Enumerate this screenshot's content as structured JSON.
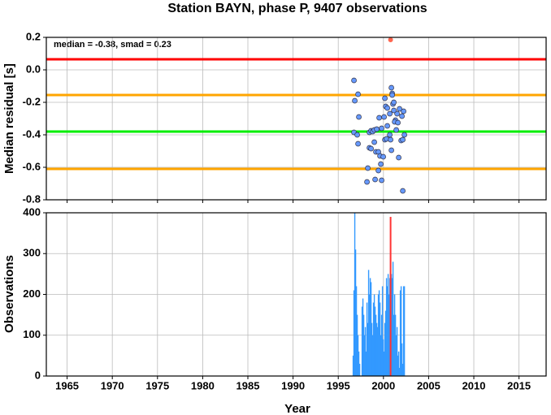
{
  "chart_data": [
    {
      "type": "scatter",
      "title": "Station BAYN, phase P, 9407 observations",
      "annotation": "median = -0.38, smad = 0.23",
      "ylabel": "Median residual [s]",
      "xlim": [
        1962.7,
        2018
      ],
      "xticks": [
        1965,
        1970,
        1975,
        1980,
        1985,
        1990,
        1995,
        2000,
        2005,
        2010,
        2015
      ],
      "ylim": [
        -0.8,
        0.2
      ],
      "yticks": [
        0.2,
        {
          "value": 0,
          "label": "0.0"
        },
        -0.2,
        -0.4,
        -0.6,
        -0.8
      ],
      "grid": true,
      "color": "#6699ff",
      "reference_lines": [
        {
          "value": 0.065,
          "color": "#ff0000"
        },
        {
          "value": -0.155,
          "color": "#ffa500"
        },
        {
          "value": -0.38,
          "color": "#00ee00"
        },
        {
          "value": -0.61,
          "color": "#ffa500"
        }
      ],
      "x": [
        1996.74,
        1996.83,
        1997.19,
        1997.28,
        1996.74,
        1997.1,
        1997.19,
        1998.45,
        1998.63,
        1998.81,
        1998.99,
        1999.26,
        1999.8,
        1999.53,
        2000.07,
        2000.25,
        2000.16,
        2000.43,
        2000.7,
        2000.88,
        2000.97,
        2001.06,
        2001.15,
        2001.33,
        2001.24,
        2001.6,
        2001.51,
        2001.78,
        2002.05,
        2002.23,
        2000.16,
        2000.34,
        2000.7,
        1998.45,
        1998.63,
        1998.99,
        1999.17,
        1999.44,
        1999.62,
        1999.98,
        1999.71,
        1998.27,
        1999.44,
        1998.18,
        1999.08,
        1999.8,
        2001.69,
        2001.96,
        2002.14,
        2002.32,
        2000.97,
        2001.15,
        2000.43,
        2001.42,
        2000.88,
        2000.79,
        2002.14
      ],
      "values": [
        -0.065,
        -0.19,
        -0.15,
        -0.29,
        -0.385,
        -0.4,
        -0.455,
        -0.385,
        -0.375,
        -0.38,
        -0.37,
        -0.365,
        -0.36,
        -0.295,
        -0.29,
        -0.225,
        -0.175,
        -0.235,
        -0.27,
        -0.11,
        -0.145,
        -0.21,
        -0.2,
        -0.31,
        -0.32,
        -0.325,
        -0.27,
        -0.24,
        -0.285,
        -0.255,
        -0.43,
        -0.425,
        -0.4,
        -0.48,
        -0.485,
        -0.445,
        -0.505,
        -0.505,
        -0.53,
        -0.535,
        -0.58,
        -0.605,
        -0.62,
        -0.69,
        -0.675,
        -0.68,
        -0.54,
        -0.435,
        -0.43,
        -0.4,
        -0.155,
        -0.25,
        -0.345,
        -0.37,
        -0.495,
        -0.43,
        -0.745
      ],
      "highlight_x": 2000.79,
      "highlight_value": 0.185,
      "highlight_color": "#ff6650"
    },
    {
      "type": "bar",
      "ylabel": "Observations",
      "xlabel": "Year",
      "xlim": [
        1962.7,
        2018
      ],
      "xticks": [
        1965,
        1970,
        1975,
        1980,
        1985,
        1990,
        1995,
        2000,
        2005,
        2010,
        2015
      ],
      "ylim": [
        0,
        400
      ],
      "yticks": [
        0,
        100,
        200,
        300,
        400
      ],
      "grid": true,
      "color": "#3399ff",
      "x": [
        1996.65,
        1996.74,
        1996.83,
        1996.92,
        1997.01,
        1997.1,
        1997.19,
        1997.28,
        1997.37,
        1997.46,
        1997.55,
        1997.64,
        1997.73,
        1997.82,
        1997.91,
        1998.0,
        1998.09,
        1998.18,
        1998.27,
        1998.36,
        1998.45,
        1998.54,
        1998.63,
        1998.72,
        1998.81,
        1998.9,
        1998.99,
        1999.08,
        1999.17,
        1999.26,
        1999.35,
        1999.44,
        1999.53,
        1999.62,
        1999.71,
        1999.8,
        1999.89,
        1999.98,
        2000.07,
        2000.16,
        2000.25,
        2000.34,
        2000.43,
        2000.52,
        2000.61,
        2000.7,
        2000.79,
        2000.88,
        2000.97,
        2001.06,
        2001.15,
        2001.24,
        2001.33,
        2001.42,
        2001.51,
        2001.6,
        2001.69,
        2001.78,
        2001.87,
        2001.96,
        2002.05,
        2002.14,
        2002.23,
        2002.32
      ],
      "values": [
        50,
        210,
        400,
        310,
        220,
        150,
        100,
        60,
        30,
        0,
        0,
        170,
        190,
        150,
        100,
        120,
        60,
        180,
        130,
        260,
        200,
        240,
        230,
        130,
        100,
        180,
        200,
        170,
        150,
        130,
        120,
        200,
        210,
        180,
        100,
        150,
        220,
        90,
        60,
        130,
        160,
        240,
        220,
        250,
        200,
        240,
        300,
        250,
        240,
        280,
        150,
        200,
        150,
        100,
        120,
        50,
        60,
        20,
        210,
        220,
        80,
        30,
        220,
        220
      ],
      "highlight_x": 2000.79,
      "highlight_value": 390,
      "highlight_color": "#ff3333"
    }
  ]
}
